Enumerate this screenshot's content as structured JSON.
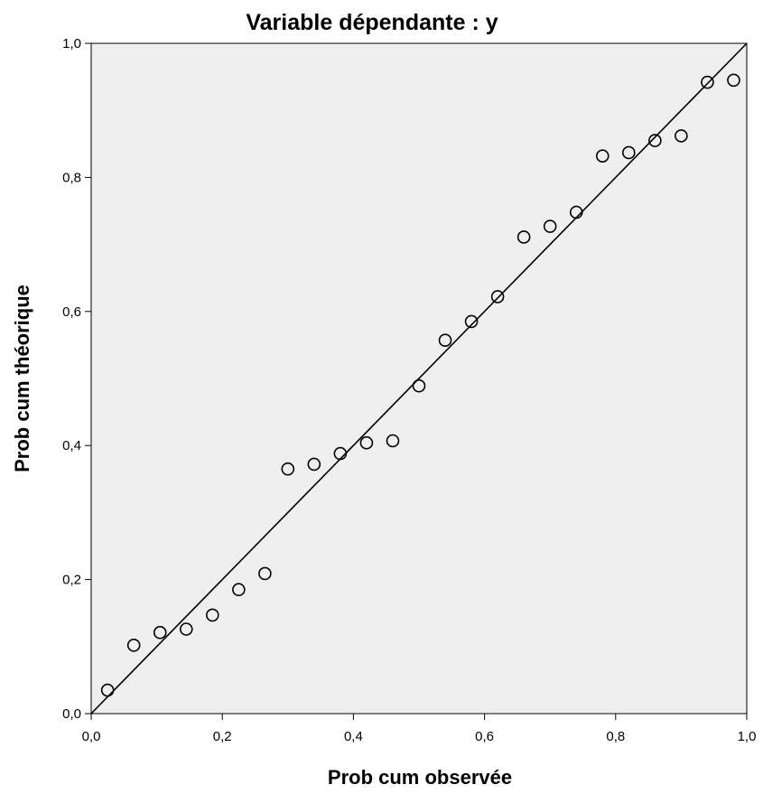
{
  "chart_data": {
    "type": "scatter",
    "title": "Variable dépendante : y",
    "xlabel": "Prob cum observée",
    "ylabel": "Prob cum théorique",
    "xlim": [
      0.0,
      1.0
    ],
    "ylim": [
      0.0,
      1.0
    ],
    "x_ticks": [
      "0,0",
      "0,2",
      "0,4",
      "0,6",
      "0,8",
      "1,0"
    ],
    "y_ticks": [
      "0,0",
      "0,2",
      "0,4",
      "0,6",
      "0,8",
      "1,0"
    ],
    "x_tick_values": [
      0.0,
      0.2,
      0.4,
      0.6,
      0.8,
      1.0
    ],
    "y_tick_values": [
      0.0,
      0.2,
      0.4,
      0.6,
      0.8,
      1.0
    ],
    "grid": false,
    "reference_line": {
      "from": [
        0.0,
        0.0
      ],
      "to": [
        1.0,
        1.0
      ]
    },
    "points": [
      [
        0.025,
        0.035
      ],
      [
        0.065,
        0.102
      ],
      [
        0.105,
        0.121
      ],
      [
        0.145,
        0.126
      ],
      [
        0.185,
        0.147
      ],
      [
        0.225,
        0.185
      ],
      [
        0.265,
        0.209
      ],
      [
        0.3,
        0.365
      ],
      [
        0.34,
        0.372
      ],
      [
        0.38,
        0.388
      ],
      [
        0.42,
        0.404
      ],
      [
        0.46,
        0.407
      ],
      [
        0.5,
        0.489
      ],
      [
        0.54,
        0.557
      ],
      [
        0.58,
        0.585
      ],
      [
        0.62,
        0.622
      ],
      [
        0.66,
        0.711
      ],
      [
        0.7,
        0.727
      ],
      [
        0.74,
        0.748
      ],
      [
        0.78,
        0.832
      ],
      [
        0.82,
        0.837
      ],
      [
        0.86,
        0.855
      ],
      [
        0.9,
        0.862
      ],
      [
        0.94,
        0.942
      ],
      [
        0.98,
        0.945
      ]
    ],
    "colors": {
      "plot_background": "#efefef",
      "marker": "#000000",
      "line": "#000000"
    }
  }
}
